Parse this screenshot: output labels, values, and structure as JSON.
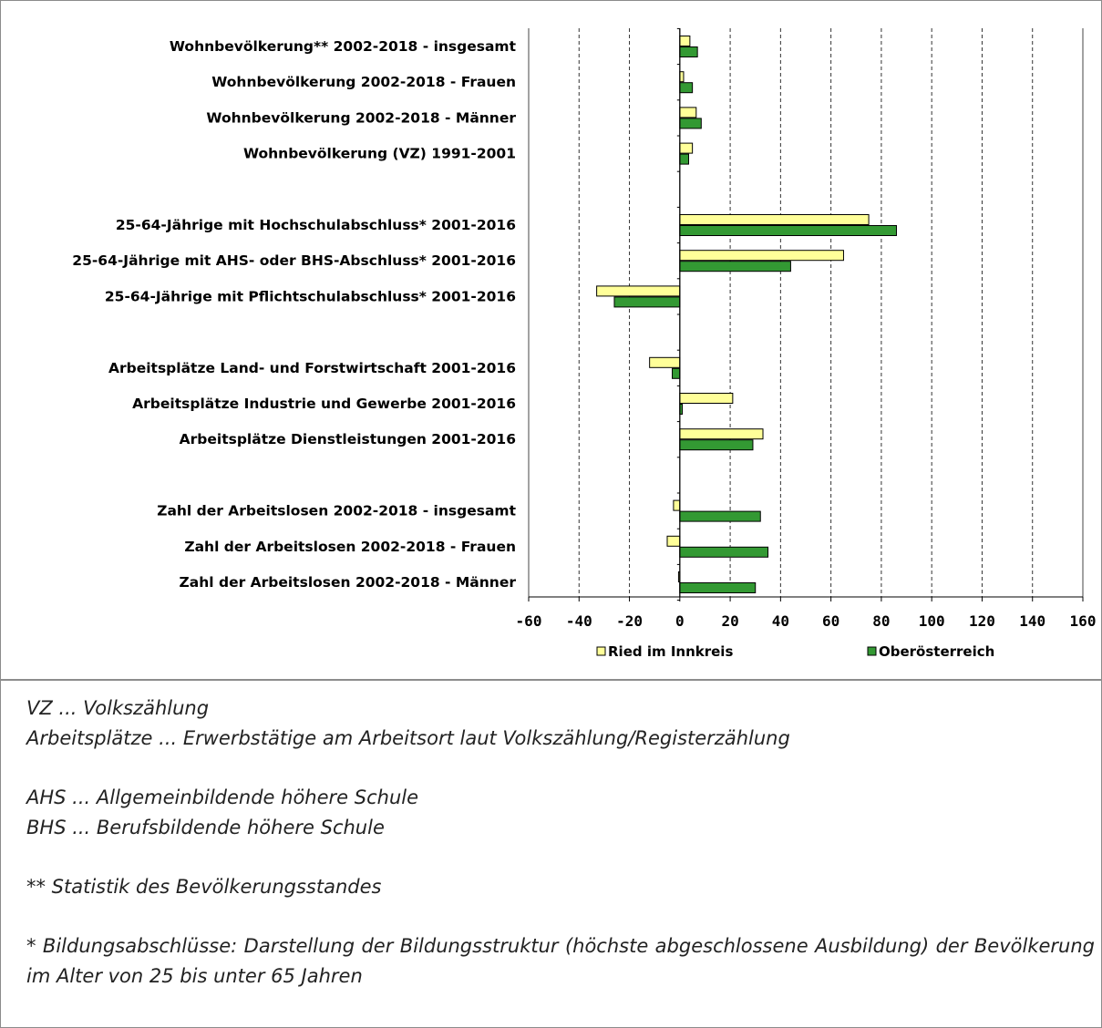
{
  "chart_data": {
    "type": "bar",
    "orientation": "horizontal",
    "title": "",
    "xlabel": "",
    "ylabel": "",
    "xlim": [
      -60,
      160
    ],
    "xticks": [
      -60,
      -40,
      -20,
      0,
      20,
      40,
      60,
      80,
      100,
      120,
      140,
      160
    ],
    "grid": "vertical dashed",
    "legend_position": "bottom",
    "groups": [
      [
        "Wohnbevölkerung** 2002-2018 - insgesamt",
        "Wohnbevölkerung 2002-2018 - Frauen",
        "Wohnbevölkerung 2002-2018 - Männer",
        "Wohnbevölkerung (VZ) 1991-2001"
      ],
      [
        "25-64-Jährige mit Hochschulabschluss* 2001-2016",
        "25-64-Jährige mit AHS- oder BHS-Abschluss* 2001-2016",
        "25-64-Jährige mit Pflichtschulabschluss* 2001-2016"
      ],
      [
        "Arbeitsplätze Land- und Forstwirtschaft 2001-2016",
        "Arbeitsplätze Industrie und Gewerbe 2001-2016",
        "Arbeitsplätze Dienstleistungen 2001-2016"
      ],
      [
        "Zahl der Arbeitslosen 2002-2018 - insgesamt",
        "Zahl der Arbeitslosen 2002-2018 - Frauen",
        "Zahl der Arbeitslosen 2002-2018 - Männer"
      ]
    ],
    "series": [
      {
        "name": "Ried im Innkreis",
        "color": "#ffff99",
        "values": [
          4,
          1.5,
          6.5,
          5,
          75,
          65,
          -33,
          -12,
          21,
          33,
          -2.5,
          -5,
          -0.5
        ]
      },
      {
        "name": "Oberösterreich",
        "color": "#339933",
        "values": [
          7,
          5,
          8.5,
          3.5,
          86,
          44,
          -26,
          -3,
          1,
          29,
          32,
          35,
          30
        ]
      }
    ]
  },
  "notes": [
    "VZ ... Volkszählung",
    "Arbeitsplätze ... Erwerbstätige am Arbeitsort laut Volkszählung/Registerzählung",
    "AHS ... Allgemeinbildende höhere Schule",
    "BHS ... Berufsbildende höhere Schule",
    "** Statistik des Bevölkerungsstandes",
    "* Bildungsabschlüsse: Darstellung der Bildungsstruktur (höchste abgeschlossene Ausbildung) der Bevölkerung im Alter von 25 bis unter 65 Jahren"
  ]
}
